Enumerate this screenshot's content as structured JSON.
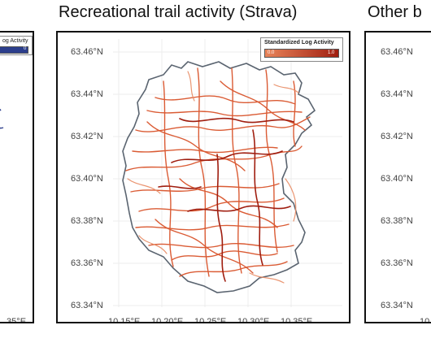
{
  "titles": {
    "center": "Recreational trail activity (Strava)",
    "right": "Other b"
  },
  "left_panel": {
    "legend_title_fragment": "og Activity",
    "legend_tick": "0",
    "lon_label_fragment": ".35°E",
    "legend_color": "#2c3e8c"
  },
  "center_panel": {
    "legend_title": "Standardized Log Activity",
    "legend_min": "0.0",
    "legend_max": "1.0",
    "legend_color_low": "#e8845a",
    "legend_color_high": "#a01e10",
    "lat_labels": [
      "63.46°N",
      "63.44°N",
      "63.42°N",
      "63.40°N",
      "63.38°N",
      "63.36°N",
      "63.34°N"
    ],
    "lon_labels": [
      "10.15°E",
      "10.20°E",
      "10.25°E",
      "10.30°E",
      "10.35°E"
    ],
    "boundary_color": "#5a6470",
    "trail_color": "#d9532a"
  },
  "right_panel": {
    "lat_labels": [
      "63.46°N",
      "63.44°N",
      "63.42°N",
      "63.40°N",
      "63.38°N",
      "63.36°N",
      "63.34°N"
    ],
    "lon_label_fragment": "10."
  }
}
